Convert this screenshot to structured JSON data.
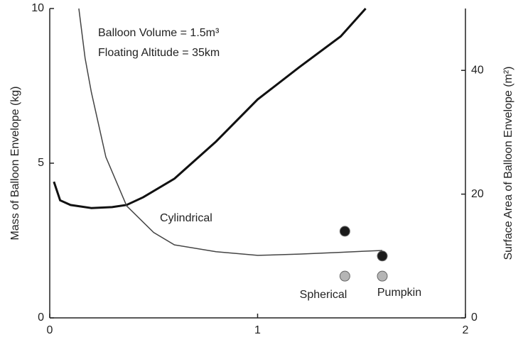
{
  "chart_data": {
    "type": "line",
    "annotations": [
      "Balloon Volume = 1.5m³",
      "Floating Altitude = 35km",
      "Cylindrical",
      "Spherical",
      "Pumpkin"
    ],
    "xlabel": "",
    "ylabel": "Mass of Balloon Envelope (kg)",
    "y2label": "Surface Area of Balloon Envelope (m²)",
    "xlim": [
      0,
      2
    ],
    "xticks": [
      0,
      1,
      2
    ],
    "ylim": [
      0,
      10
    ],
    "yticks": [
      0,
      5,
      10
    ],
    "y2lim": [
      0,
      50
    ],
    "y2ticks": [
      0,
      20,
      40
    ],
    "series": [
      {
        "type": "line",
        "color": "#111111",
        "axis": "y",
        "x": [
          0.02,
          0.05,
          0.1,
          0.2,
          0.3,
          0.37,
          0.45,
          0.6,
          0.8,
          1.0,
          1.2,
          1.4,
          1.52
        ],
        "values": [
          4.4,
          3.8,
          3.65,
          3.55,
          3.58,
          3.65,
          3.9,
          4.5,
          5.7,
          7.06,
          8.1,
          9.1,
          10
        ]
      },
      {
        "type": "line",
        "color": "#444444",
        "axis": "y2",
        "x": [
          0.14,
          0.17,
          0.2,
          0.27,
          0.37,
          0.5,
          0.6,
          0.8,
          1.0,
          1.2,
          1.4,
          1.6
        ],
        "values": [
          50,
          42,
          36.5,
          26,
          18.1,
          13.8,
          11.8,
          10.7,
          10.1,
          10.3,
          10.6,
          10.9
        ]
      },
      {
        "type": "scatter",
        "color": "#1a1a1a",
        "axis": "y",
        "x": [
          1.42,
          1.6
        ],
        "values": [
          2.8,
          2.0
        ]
      },
      {
        "type": "scatter",
        "color": "#b5b5b5",
        "axis": "y2",
        "x": [
          1.42,
          1.6
        ],
        "values": [
          6.75,
          6.75
        ]
      }
    ]
  }
}
